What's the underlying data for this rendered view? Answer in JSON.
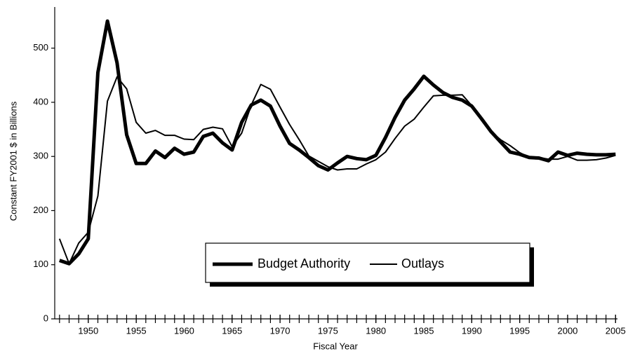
{
  "chart_data": {
    "type": "line",
    "x_label": "Fiscal Year",
    "y_label": "Constant FY2001 $ in Billions",
    "x": [
      1947,
      1948,
      1949,
      1950,
      1951,
      1952,
      1953,
      1954,
      1955,
      1956,
      1957,
      1958,
      1959,
      1960,
      1961,
      1962,
      1963,
      1964,
      1965,
      1966,
      1967,
      1968,
      1969,
      1970,
      1971,
      1972,
      1973,
      1974,
      1975,
      1976,
      1977,
      1978,
      1979,
      1980,
      1981,
      1982,
      1983,
      1984,
      1985,
      1986,
      1987,
      1988,
      1989,
      1990,
      1991,
      1992,
      1993,
      1994,
      1995,
      1996,
      1997,
      1998,
      1999,
      2000,
      2001,
      2002,
      2003,
      2004,
      2005
    ],
    "series": [
      {
        "name": "Budget Authority",
        "color": "#000000",
        "width": 5,
        "values": [
          108,
          102,
          120,
          148,
          455,
          550,
          473,
          340,
          287,
          287,
          310,
          298,
          315,
          304,
          308,
          337,
          343,
          325,
          312,
          363,
          395,
          404,
          393,
          356,
          324,
          312,
          298,
          283,
          275,
          288,
          300,
          296,
          294,
          302,
          335,
          372,
          404,
          425,
          448,
          432,
          418,
          409,
          404,
          393,
          370,
          346,
          327,
          308,
          304,
          298,
          297,
          292,
          308,
          302,
          306,
          304,
          303,
          303,
          304
        ]
      },
      {
        "name": "Outlays",
        "color": "#000000",
        "width": 2,
        "values": [
          148,
          102,
          140,
          160,
          227,
          402,
          447,
          425,
          363,
          343,
          348,
          339,
          339,
          332,
          331,
          350,
          354,
          351,
          318,
          343,
          395,
          433,
          424,
          391,
          359,
          331,
          301,
          291,
          281,
          275,
          277,
          277,
          286,
          294,
          308,
          333,
          356,
          369,
          391,
          412,
          413,
          413,
          414,
          394,
          367,
          346,
          331,
          320,
          307,
          298,
          298,
          295,
          295,
          300,
          293,
          293,
          294,
          297,
          302
        ]
      }
    ],
    "xlim": [
      1946.5,
      2005.2
    ],
    "xticks": [
      1950,
      1955,
      1960,
      1965,
      1970,
      1975,
      1980,
      1985,
      1990,
      1995,
      2000,
      2005
    ],
    "ylim": [
      0,
      576
    ],
    "yticks": [
      0,
      100,
      200,
      300,
      400,
      500
    ]
  }
}
